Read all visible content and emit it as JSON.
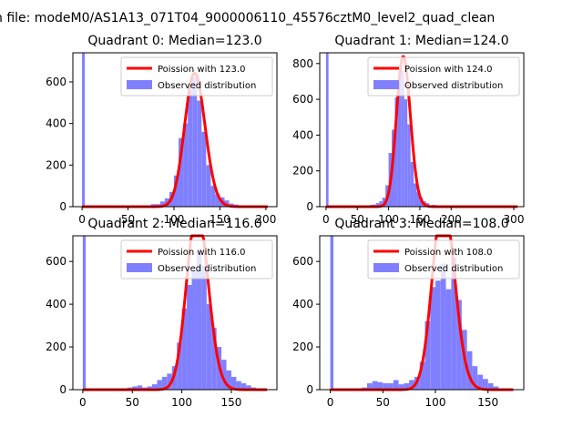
{
  "figure": {
    "suptitle": "n file: modeM0/AS1A13_071T04_9000006110_45576cztM0_level2_quad_clean"
  },
  "legend": {
    "poisson_prefix": "Poission with ",
    "observed_label": "Observed distribution"
  },
  "colors": {
    "poisson": "#ff0000",
    "observed": "#8080ff",
    "axes": "#000000"
  },
  "chart_data": [
    {
      "type": "bar",
      "title": "Quadrant 0: Median=123.0",
      "median": 123.0,
      "poisson_label": "Poission with 123.0",
      "xlim": [
        -10,
        212
      ],
      "ylim": [
        0,
        740
      ],
      "xticks": [
        0,
        50,
        100,
        150,
        200
      ],
      "yticks": [
        0,
        200,
        400,
        600
      ],
      "bin_width": 5,
      "spike": {
        "x": 0,
        "width": 3
      },
      "bins": [
        [
          50,
          3
        ],
        [
          55,
          3
        ],
        [
          60,
          3
        ],
        [
          65,
          5
        ],
        [
          70,
          6
        ],
        [
          75,
          12
        ],
        [
          80,
          12
        ],
        [
          85,
          25
        ],
        [
          90,
          40
        ],
        [
          95,
          70
        ],
        [
          100,
          150
        ],
        [
          105,
          330
        ],
        [
          110,
          400
        ],
        [
          115,
          560
        ],
        [
          120,
          620
        ],
        [
          125,
          510
        ],
        [
          130,
          360
        ],
        [
          135,
          200
        ],
        [
          140,
          100
        ],
        [
          145,
          60
        ],
        [
          150,
          45
        ],
        [
          155,
          30
        ],
        [
          160,
          15
        ],
        [
          165,
          10
        ],
        [
          170,
          5
        ]
      ],
      "legend": "upper right"
    },
    {
      "type": "bar",
      "title": "Quadrant 1: Median=124.0",
      "median": 124.0,
      "poisson_label": "Poission with 124.0",
      "xlim": [
        -10,
        316
      ],
      "ylim": [
        0,
        860
      ],
      "xticks": [
        0,
        50,
        100,
        150,
        200,
        300
      ],
      "yticks": [
        0,
        200,
        400,
        600,
        800
      ],
      "bin_width": 5,
      "spike": {
        "x": 0,
        "width": 4
      },
      "bins": [
        [
          50,
          5
        ],
        [
          60,
          6
        ],
        [
          70,
          10
        ],
        [
          75,
          12
        ],
        [
          80,
          20
        ],
        [
          85,
          30
        ],
        [
          90,
          50
        ],
        [
          95,
          120
        ],
        [
          100,
          300
        ],
        [
          105,
          430
        ],
        [
          110,
          610
        ],
        [
          115,
          700
        ],
        [
          120,
          760
        ],
        [
          125,
          600
        ],
        [
          130,
          460
        ],
        [
          135,
          250
        ],
        [
          140,
          130
        ],
        [
          145,
          80
        ],
        [
          150,
          50
        ],
        [
          155,
          30
        ],
        [
          160,
          20
        ],
        [
          170,
          10
        ],
        [
          180,
          5
        ]
      ],
      "legend": "upper right"
    },
    {
      "type": "bar",
      "title": "Quadrant 2: Median=116.0",
      "median": 116.0,
      "poisson_label": "Poission with 116.0",
      "xlim": [
        -10,
        196
      ],
      "ylim": [
        0,
        720
      ],
      "xticks": [
        0,
        50,
        100,
        150
      ],
      "yticks": [
        0,
        200,
        400,
        600
      ],
      "bin_width": 5,
      "spike": {
        "x": 0,
        "width": 3
      },
      "bins": [
        [
          40,
          5
        ],
        [
          45,
          10
        ],
        [
          50,
          15
        ],
        [
          55,
          20
        ],
        [
          60,
          10
        ],
        [
          65,
          15
        ],
        [
          70,
          25
        ],
        [
          75,
          45
        ],
        [
          80,
          60
        ],
        [
          85,
          75
        ],
        [
          90,
          110
        ],
        [
          95,
          220
        ],
        [
          100,
          380
        ],
        [
          105,
          490
        ],
        [
          110,
          560
        ],
        [
          115,
          650
        ],
        [
          120,
          580
        ],
        [
          125,
          400
        ],
        [
          130,
          290
        ],
        [
          135,
          200
        ],
        [
          140,
          140
        ],
        [
          145,
          90
        ],
        [
          150,
          60
        ],
        [
          155,
          40
        ],
        [
          160,
          30
        ],
        [
          165,
          20
        ],
        [
          170,
          10
        ],
        [
          180,
          5
        ]
      ],
      "legend": "upper right"
    },
    {
      "type": "bar",
      "title": "Quadrant 3: Median=108.0",
      "median": 108.0,
      "poisson_label": "Poission with 108.0",
      "xlim": [
        -10,
        184
      ],
      "ylim": [
        0,
        720
      ],
      "xticks": [
        0,
        50,
        100,
        150
      ],
      "yticks": [
        0,
        200,
        400,
        600
      ],
      "bin_width": 5,
      "spike": {
        "x": 0,
        "width": 3
      },
      "bins": [
        [
          30,
          10
        ],
        [
          35,
          30
        ],
        [
          40,
          40
        ],
        [
          45,
          35
        ],
        [
          50,
          30
        ],
        [
          55,
          30
        ],
        [
          60,
          45
        ],
        [
          65,
          25
        ],
        [
          70,
          30
        ],
        [
          75,
          45
        ],
        [
          80,
          60
        ],
        [
          85,
          130
        ],
        [
          90,
          320
        ],
        [
          95,
          480
        ],
        [
          100,
          510
        ],
        [
          105,
          590
        ],
        [
          110,
          470
        ],
        [
          115,
          620
        ],
        [
          120,
          420
        ],
        [
          125,
          280
        ],
        [
          130,
          180
        ],
        [
          135,
          110
        ],
        [
          140,
          70
        ],
        [
          145,
          50
        ],
        [
          150,
          30
        ],
        [
          155,
          15
        ],
        [
          160,
          5
        ]
      ],
      "legend": "upper right"
    }
  ]
}
